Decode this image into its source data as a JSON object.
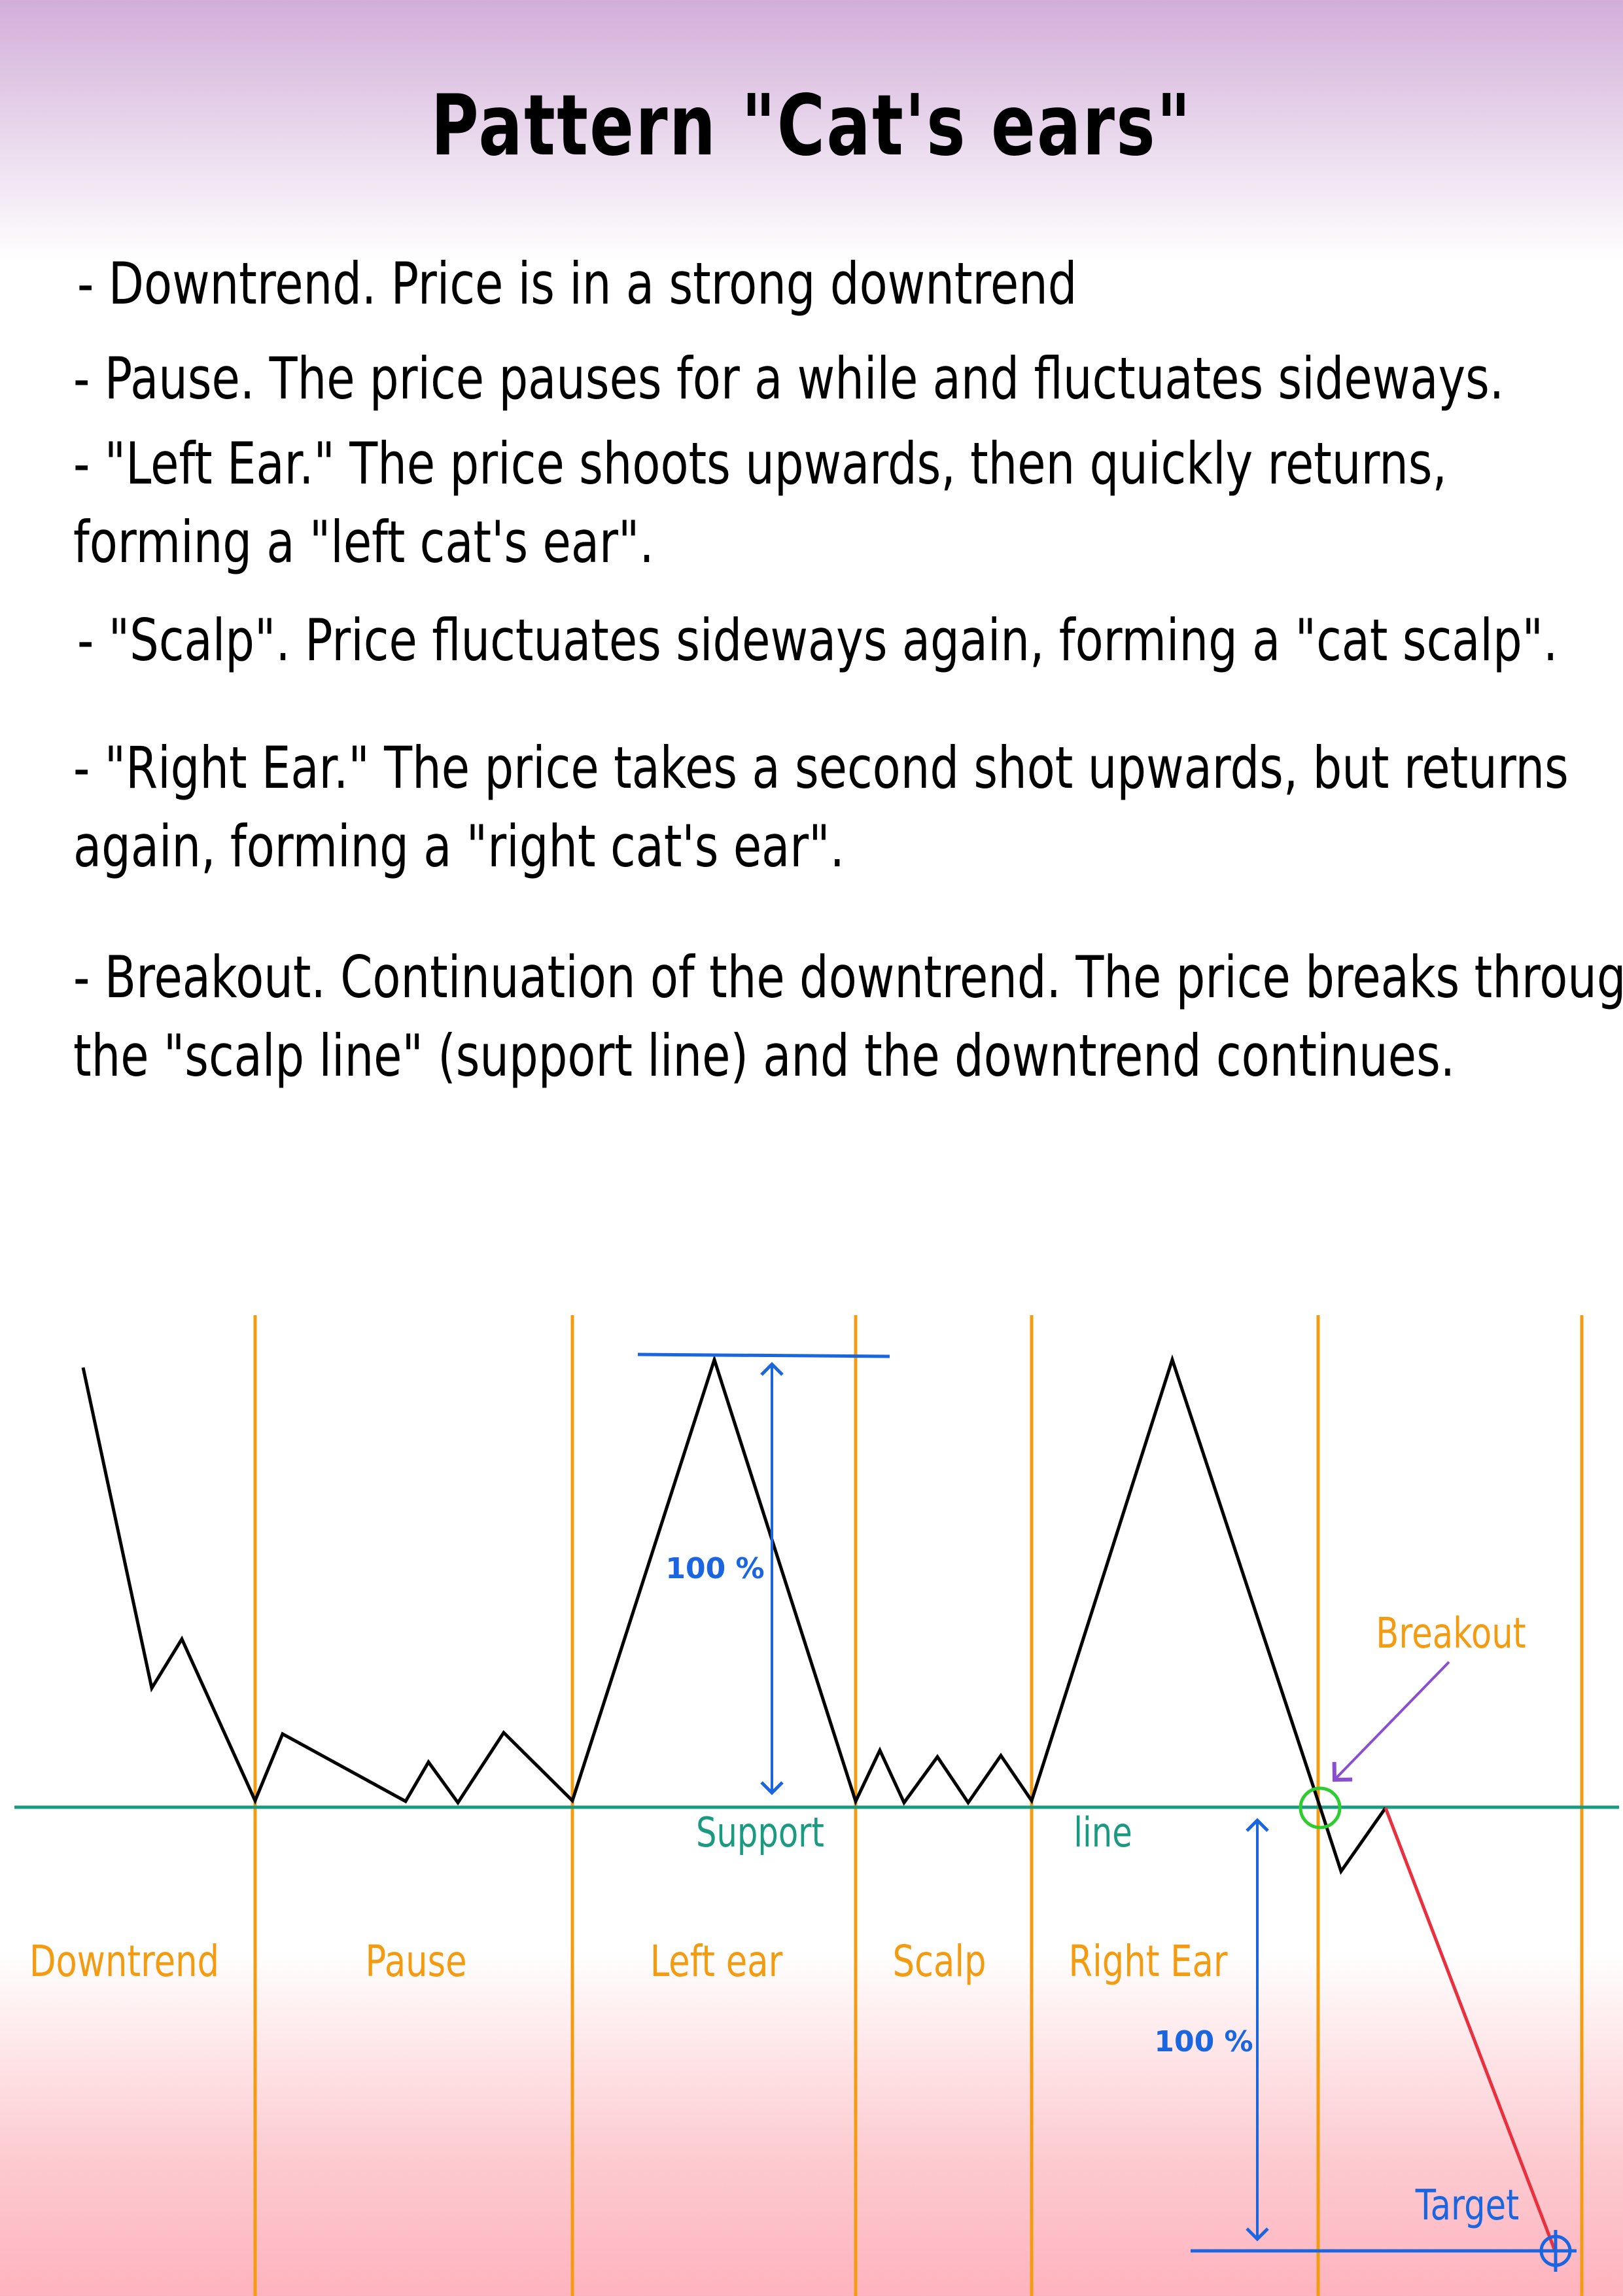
{
  "title": "Pattern \"Cat's ears\"",
  "description": [
    "- Downtrend. Price is in a strong downtrend",
    "- Pause. The price pauses for a while and fluctuates sideways.",
    "- \"Left Ear.\" The price shoots upwards, then quickly returns,",
    "forming a \"left cat's ear\".",
    "- \"Scalp\". Price fluctuates sideways again, forming a \"cat scalp\".",
    "- \"Right Ear.\"  The price takes a second shot upwards, but returns",
    " again, forming a \"right cat's ear\".",
    "- Breakout. Continuation of the downtrend.  The price breaks through",
    "the \"scalp line\" (support line) and the downtrend continues."
  ],
  "diagram": {
    "phases": [
      "Downtrend",
      "Pause",
      "Left ear",
      "Scalp",
      "Right Ear"
    ],
    "support_label_left": "Support",
    "support_label_right": "line",
    "height_label_top": "100 %",
    "height_label_bottom": "100 %",
    "breakout_label": "Breakout",
    "target_label": "Target",
    "colors": {
      "price": "#000000",
      "phase_divider": "#f39c12",
      "phase_label": "#f39c12",
      "support": "#1a9a80",
      "measure": "#1a66e0",
      "projection": "#e8303f",
      "breakout_circle": "#2ecc2e",
      "breakout_arrow": "#8a4fd0"
    }
  }
}
